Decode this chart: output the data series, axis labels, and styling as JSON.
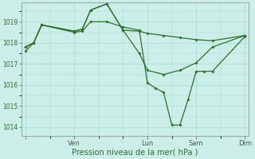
{
  "background_color": "#cceee8",
  "grid_color": "#aad8d3",
  "line_color": "#2d6e2d",
  "xlabel": "Pression niveau de la mer( hPa )",
  "ylim": [
    1013.6,
    1019.9
  ],
  "yticks": [
    1014,
    1015,
    1016,
    1017,
    1018,
    1019
  ],
  "xlim": [
    -4,
    220
  ],
  "xtick_positions": [
    0,
    48,
    120,
    168,
    216
  ],
  "xtick_labels": [
    "",
    "Ven",
    "Lun",
    "Sam",
    "Dim"
  ],
  "series1_x": [
    0,
    8,
    16,
    48,
    56,
    64,
    80,
    96,
    112,
    120,
    128,
    136,
    144,
    152,
    160,
    168,
    176,
    184,
    216
  ],
  "series1_y": [
    1017.6,
    1018.0,
    1018.85,
    1018.5,
    1018.55,
    1019.0,
    1019.0,
    1018.75,
    1018.6,
    1016.1,
    1015.85,
    1015.65,
    1014.1,
    1014.1,
    1015.3,
    1016.65,
    1016.65,
    1016.65,
    1018.3
  ],
  "series2_x": [
    0,
    8,
    16,
    48,
    56,
    64,
    80,
    96,
    112,
    120,
    136,
    152,
    168,
    184,
    216
  ],
  "series2_y": [
    1017.8,
    1018.0,
    1018.85,
    1018.55,
    1018.65,
    1019.55,
    1019.85,
    1018.6,
    1018.55,
    1018.45,
    1018.35,
    1018.25,
    1018.15,
    1018.1,
    1018.35
  ],
  "series3_x": [
    0,
    8,
    16,
    48,
    56,
    64,
    80,
    96,
    112,
    120,
    136,
    152,
    168,
    184,
    216
  ],
  "series3_y": [
    1017.8,
    1018.0,
    1018.85,
    1018.55,
    1018.65,
    1019.55,
    1019.85,
    1018.6,
    1017.5,
    1016.7,
    1016.5,
    1016.7,
    1017.05,
    1017.8,
    1018.35
  ],
  "marker": "D",
  "markersize": 2.0,
  "linewidth": 0.9
}
